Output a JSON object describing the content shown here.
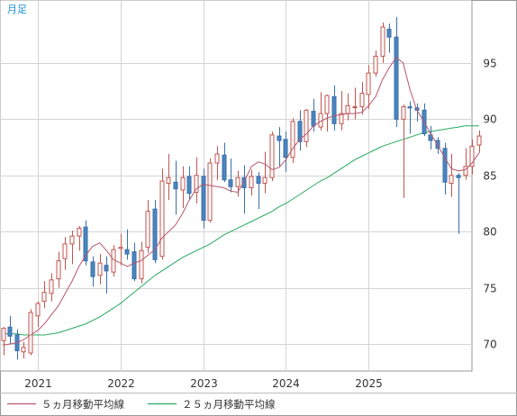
{
  "period_label": "月足",
  "chart_data": {
    "type": "candlestick",
    "y_ticks": [
      70,
      75,
      80,
      85,
      90,
      95
    ],
    "x_labels": [
      "2021",
      "2022",
      "2023",
      "2024",
      "2025"
    ],
    "ylim": [
      67.6,
      100.6
    ],
    "grid": true,
    "legend_placement": "bottom",
    "colors": {
      "up_body": "#ffffff",
      "up_border": "#c0564f",
      "down_body": "#4a86c0",
      "down_border": "#3a6fa8",
      "ma5": "#b8556b",
      "ma25": "#27a85f",
      "grid": "#d4d4d4",
      "frame": "#9a9a9a"
    },
    "start": {
      "year": 2020,
      "month": 8
    },
    "ohlc": [
      [
        70.3,
        71.5,
        69.0,
        71.4
      ],
      [
        71.5,
        72.5,
        70.0,
        70.7
      ],
      [
        70.8,
        71.3,
        68.6,
        69.4
      ],
      [
        69.3,
        70.2,
        68.7,
        69.7
      ],
      [
        69.2,
        73.1,
        69.0,
        72.8
      ],
      [
        72.5,
        73.8,
        71.5,
        73.6
      ],
      [
        73.8,
        75.6,
        73.2,
        74.6
      ],
      [
        74.5,
        76.3,
        73.8,
        75.7
      ],
      [
        75.8,
        78.2,
        75.0,
        77.4
      ],
      [
        77.6,
        79.5,
        76.6,
        78.9
      ],
      [
        78.9,
        80.1,
        77.1,
        79.6
      ],
      [
        79.6,
        80.5,
        78.3,
        80.3
      ],
      [
        80.4,
        81.0,
        77.0,
        77.4
      ],
      [
        77.3,
        77.8,
        75.1,
        76.0
      ],
      [
        76.1,
        78.0,
        75.3,
        77.2
      ],
      [
        77.0,
        77.8,
        74.5,
        76.5
      ],
      [
        76.4,
        78.8,
        76.0,
        78.4
      ],
      [
        78.5,
        79.8,
        77.0,
        78.6
      ],
      [
        78.4,
        80.2,
        77.5,
        78.0
      ],
      [
        78.2,
        79.0,
        75.6,
        75.8
      ],
      [
        75.8,
        79.1,
        75.4,
        78.3
      ],
      [
        78.6,
        82.8,
        78.1,
        81.8
      ],
      [
        82.0,
        82.8,
        77.2,
        77.5
      ],
      [
        77.8,
        85.6,
        77.5,
        84.5
      ],
      [
        84.3,
        86.9,
        82.8,
        84.8
      ],
      [
        84.4,
        86.3,
        81.5,
        83.8
      ],
      [
        83.7,
        85.8,
        82.1,
        84.8
      ],
      [
        84.9,
        85.8,
        82.8,
        83.4
      ],
      [
        83.5,
        86.6,
        82.5,
        85.0
      ],
      [
        84.9,
        85.6,
        80.3,
        81.0
      ],
      [
        81.0,
        86.5,
        80.8,
        86.1
      ],
      [
        86.1,
        87.6,
        84.6,
        86.9
      ],
      [
        86.8,
        87.9,
        84.4,
        84.6
      ],
      [
        84.6,
        86.5,
        83.5,
        84.0
      ],
      [
        84.0,
        85.4,
        83.1,
        84.8
      ],
      [
        84.8,
        85.9,
        81.6,
        83.9
      ],
      [
        83.9,
        85.5,
        83.2,
        84.9
      ],
      [
        84.9,
        85.3,
        82.0,
        84.3
      ],
      [
        84.3,
        87.1,
        83.4,
        84.8
      ],
      [
        84.8,
        88.9,
        84.5,
        88.6
      ],
      [
        88.5,
        89.3,
        85.8,
        88.1
      ],
      [
        88.2,
        88.9,
        85.3,
        86.6
      ],
      [
        86.6,
        90.1,
        86.1,
        89.8
      ],
      [
        89.8,
        90.8,
        87.2,
        88.0
      ],
      [
        88.0,
        90.9,
        87.5,
        90.8
      ],
      [
        90.7,
        91.8,
        88.9,
        89.4
      ],
      [
        89.3,
        92.4,
        89.0,
        90.5
      ],
      [
        90.5,
        92.2,
        88.9,
        92.1
      ],
      [
        92.0,
        93.0,
        89.0,
        89.6
      ],
      [
        89.6,
        92.5,
        89.0,
        90.5
      ],
      [
        90.5,
        92.3,
        89.9,
        91.2
      ],
      [
        91.1,
        92.8,
        90.0,
        91.1
      ],
      [
        91.1,
        93.3,
        90.4,
        92.3
      ],
      [
        92.2,
        94.8,
        90.9,
        94.1
      ],
      [
        94.1,
        96.1,
        93.8,
        95.6
      ],
      [
        95.6,
        98.6,
        95.0,
        98.2
      ],
      [
        98.0,
        98.5,
        95.9,
        97.3
      ],
      [
        97.3,
        99.1,
        89.3,
        90.0
      ],
      [
        90.0,
        91.3,
        83.0,
        91.1
      ],
      [
        91.1,
        91.6,
        88.7,
        91.0
      ],
      [
        91.0,
        91.4,
        89.8,
        90.8
      ],
      [
        90.8,
        91.4,
        88.5,
        88.7
      ],
      [
        88.6,
        89.4,
        87.3,
        88.1
      ],
      [
        88.1,
        88.4,
        86.9,
        87.4
      ],
      [
        87.4,
        87.9,
        83.3,
        84.4
      ],
      [
        84.3,
        86.9,
        83.1,
        85.0
      ],
      [
        85.0,
        85.2,
        79.8,
        84.8
      ],
      [
        85.0,
        87.4,
        84.6,
        85.8
      ],
      [
        85.8,
        88.2,
        85.1,
        87.6
      ],
      [
        87.7,
        89.0,
        87.0,
        88.5
      ]
    ],
    "ma5": [
      69.9,
      70.0,
      70.1,
      70.4,
      70.8,
      71.2,
      71.8,
      72.6,
      73.4,
      74.5,
      75.6,
      76.9,
      77.9,
      78.7,
      79.0,
      78.3,
      77.5,
      77.2,
      76.9,
      77.2,
      77.4,
      77.9,
      78.4,
      79.4,
      80.0,
      80.6,
      81.6,
      82.8,
      83.8,
      84.2,
      84.1,
      84.0,
      83.9,
      83.6,
      83.5,
      84.5,
      85.8,
      86.2,
      86.0,
      85.5,
      85.7,
      86.4,
      87.4,
      88.2,
      88.7,
      89.4,
      89.8,
      90.1,
      90.3,
      90.4,
      90.5,
      90.5,
      90.6,
      91.2,
      92.0,
      93.5,
      94.6,
      95.5,
      95.0,
      92.6,
      90.8,
      89.8,
      88.7,
      87.7,
      86.6,
      85.6,
      85.4,
      85.5,
      86.1,
      87.0
    ],
    "ma25": [
      70.9,
      70.9,
      70.9,
      70.8,
      70.8,
      70.8,
      70.8,
      70.9,
      71.0,
      71.2,
      71.4,
      71.6,
      71.8,
      72.1,
      72.4,
      72.8,
      73.2,
      73.6,
      74.1,
      74.6,
      75.1,
      75.6,
      76.1,
      76.5,
      76.9,
      77.3,
      77.7,
      78.0,
      78.3,
      78.6,
      78.9,
      79.3,
      79.7,
      80.0,
      80.3,
      80.6,
      80.9,
      81.2,
      81.5,
      81.8,
      82.2,
      82.5,
      82.9,
      83.3,
      83.7,
      84.1,
      84.5,
      84.8,
      85.2,
      85.6,
      86.0,
      86.4,
      86.7,
      87.0,
      87.3,
      87.6,
      87.8,
      88.0,
      88.2,
      88.4,
      88.6,
      88.8,
      88.9,
      89.0,
      89.1,
      89.2,
      89.3,
      89.4,
      89.4,
      89.4
    ]
  },
  "legend": {
    "ma5_label": "５ヵ月移動平均線",
    "ma25_label": "２５ヵ月移動平均線"
  }
}
